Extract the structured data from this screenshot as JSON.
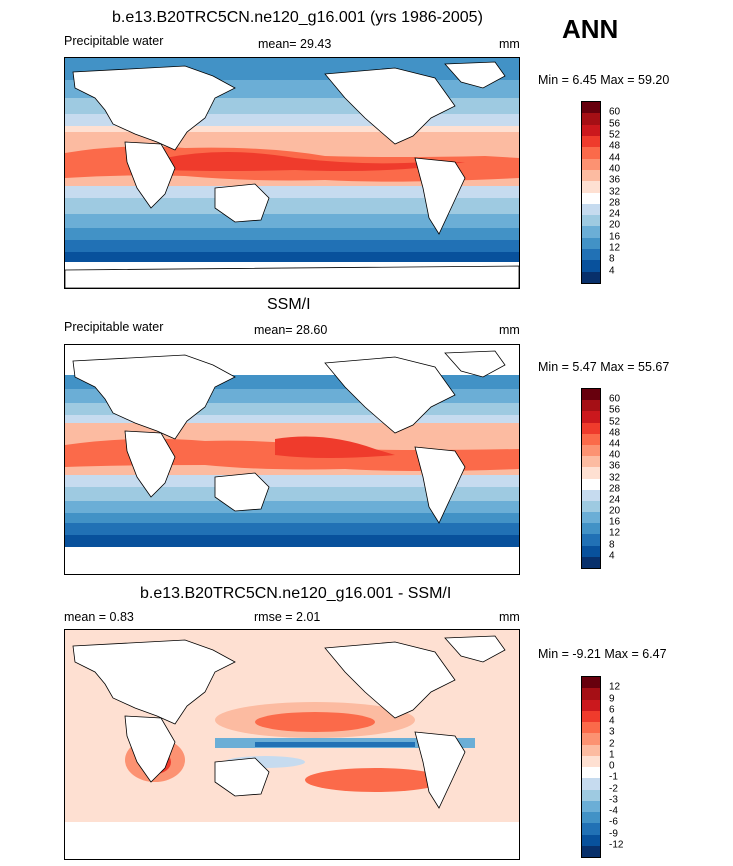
{
  "season": "ANN",
  "panels": [
    {
      "title": "b.e13.B20TRC5CN.ne120_g16.001 (yrs 1986-2005)",
      "left_label": "Precipitable water",
      "stat1": "mean=  29.43",
      "stat2": "",
      "units": "mm",
      "minmax": "Min =  6.45 Max =  59.20",
      "kind": "field"
    },
    {
      "title": "SSM/I",
      "left_label": "Precipitable water",
      "stat1": "mean=  28.60",
      "stat2": "",
      "units": "mm",
      "minmax": "Min =  5.47 Max =  55.67",
      "kind": "obs"
    },
    {
      "title": "b.e13.B20TRC5CN.ne120_g16.001 - SSM/I",
      "left_label": "mean =  0.83",
      "stat1": "rmse =  2.01",
      "stat2": "",
      "units": "mm",
      "minmax": "Min =  -9.21 Max =  6.47",
      "kind": "diff"
    }
  ],
  "colorbars": {
    "field": {
      "labels": [
        "60",
        "56",
        "52",
        "48",
        "44",
        "40",
        "36",
        "32",
        "28",
        "24",
        "20",
        "16",
        "12",
        "8",
        "4"
      ],
      "colors": [
        "#67000d",
        "#a50f15",
        "#cb181d",
        "#ef3b2c",
        "#fb6a4a",
        "#fc9272",
        "#fcbba1",
        "#fee0d2",
        "#ffffff",
        "#c6dbef",
        "#9ecae1",
        "#6baed6",
        "#4292c6",
        "#2171b5",
        "#08519c",
        "#08306b"
      ]
    },
    "diff": {
      "labels": [
        "12",
        "9",
        "6",
        "4",
        "3",
        "2",
        "1",
        "0",
        "-1",
        "-2",
        "-3",
        "-4",
        "-6",
        "-9",
        "-12"
      ],
      "colors": [
        "#67000d",
        "#a50f15",
        "#cb181d",
        "#ef3b2c",
        "#fb6a4a",
        "#fc9272",
        "#fcbba1",
        "#fee0d2",
        "#ffffff",
        "#c6dbef",
        "#9ecae1",
        "#6baed6",
        "#4292c6",
        "#2171b5",
        "#08519c",
        "#08306b"
      ]
    }
  }
}
